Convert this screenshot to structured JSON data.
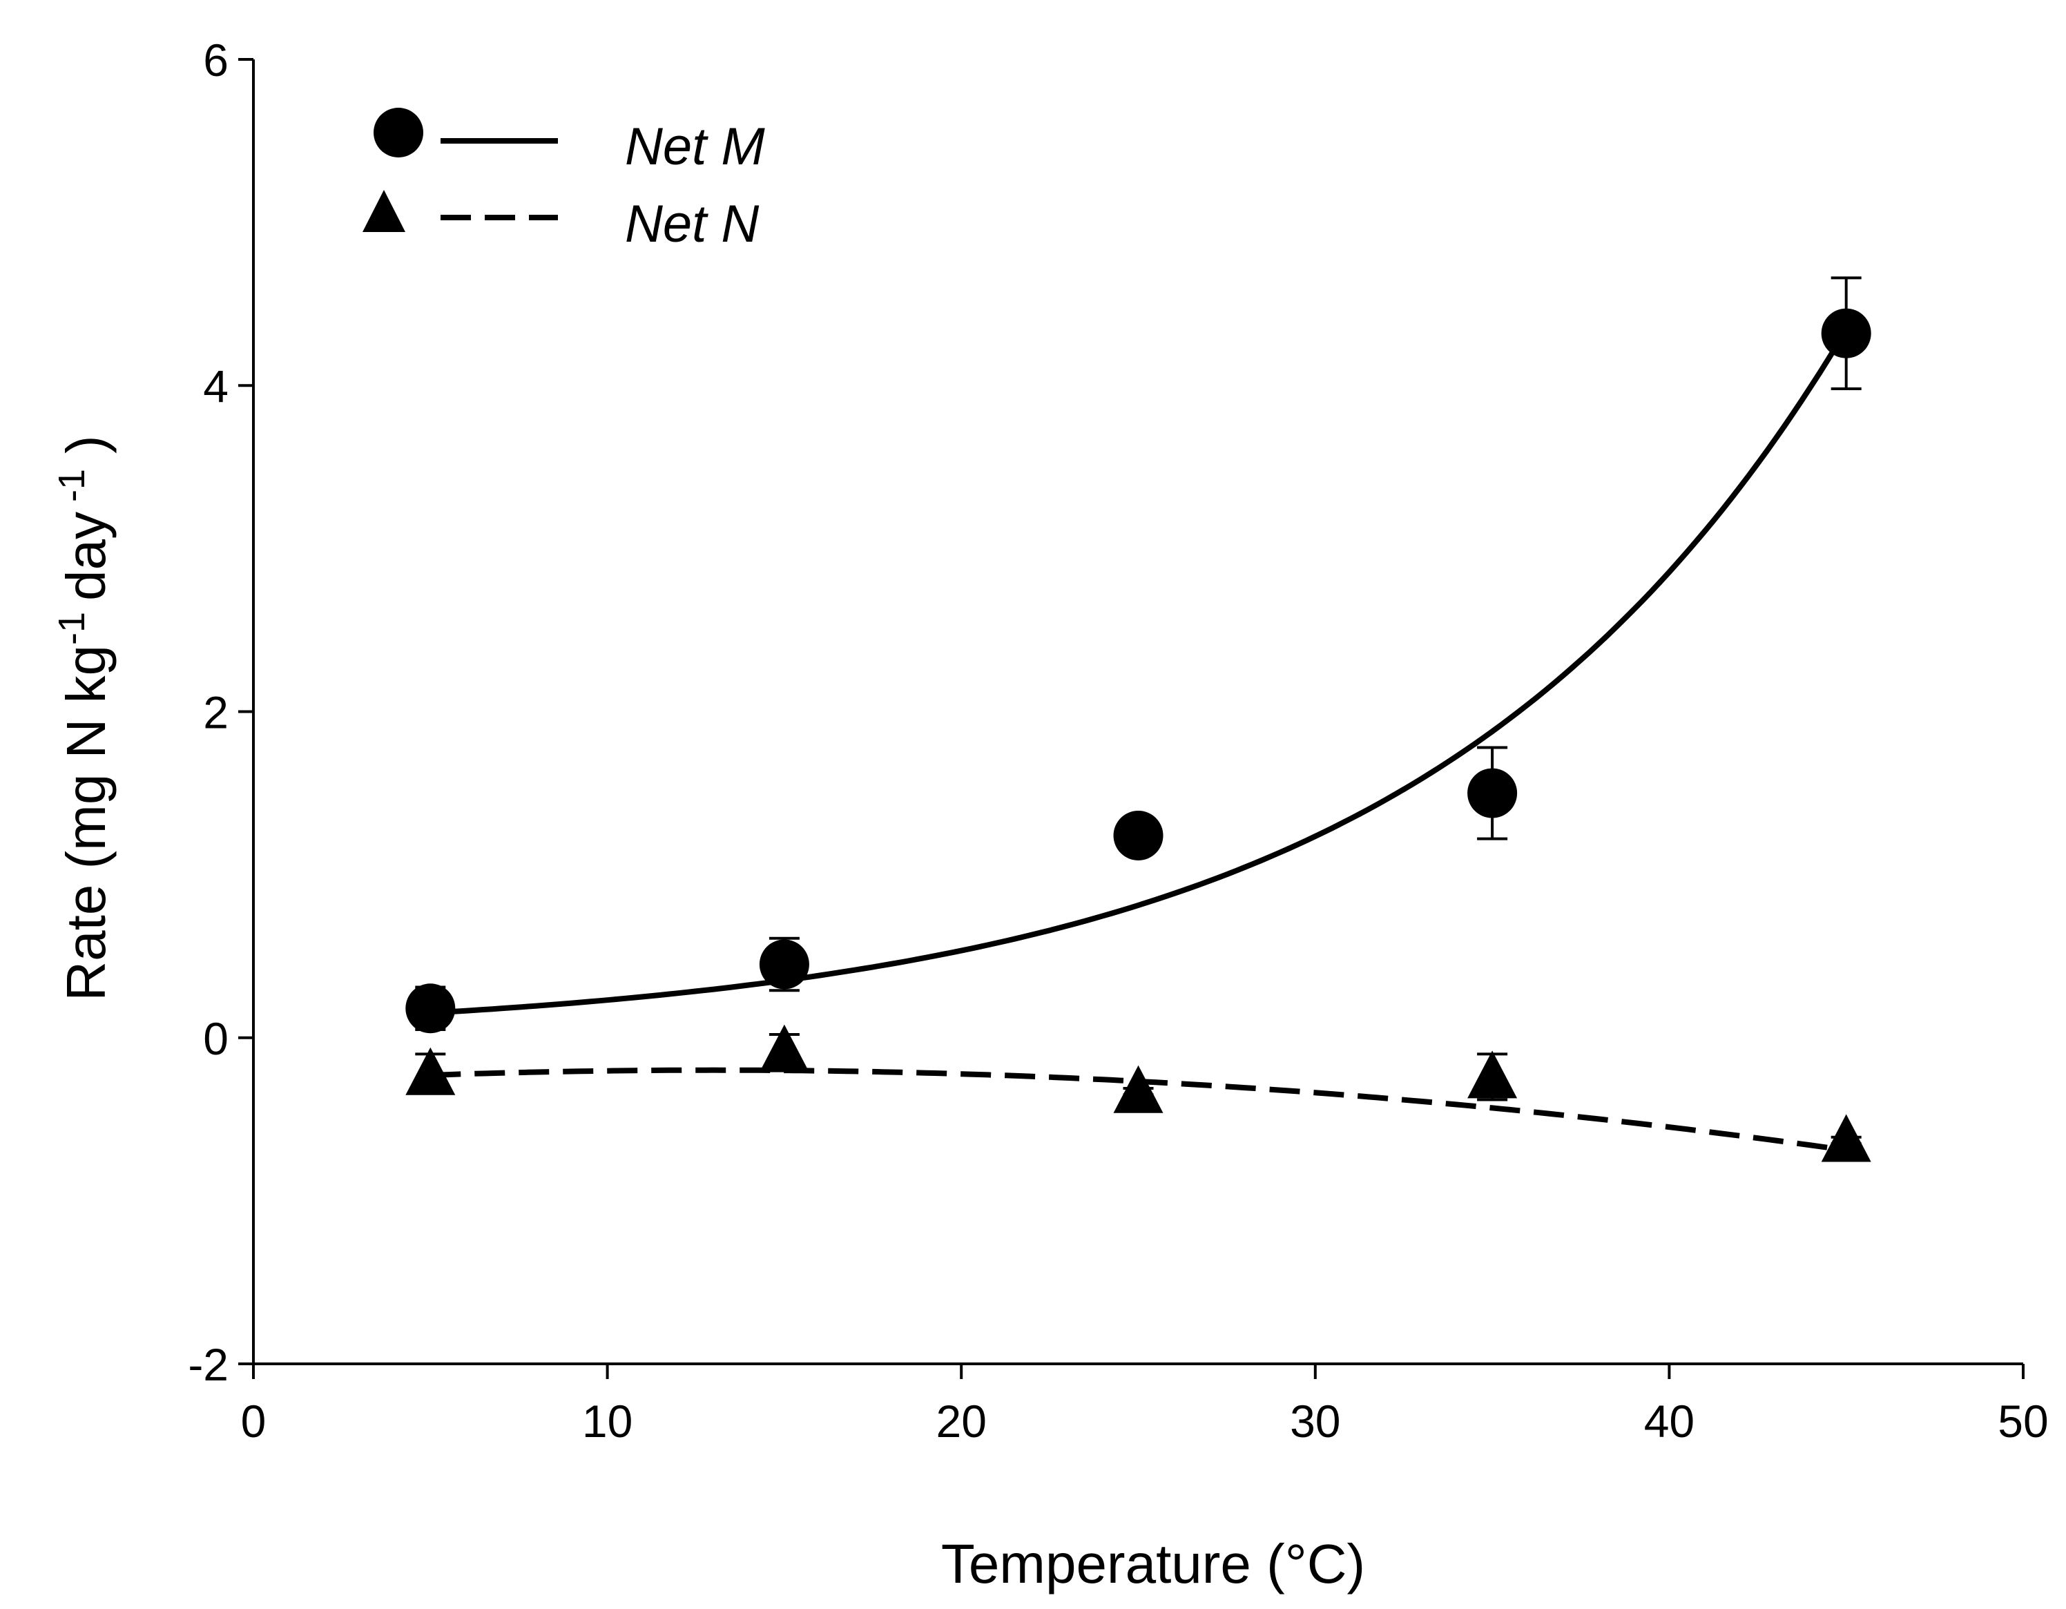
{
  "chart_data": {
    "type": "scatter",
    "title": "",
    "xlabel": "Temperature (°C)",
    "ylabel": "Rate (mg N kg",
    "ylabel_parts": {
      "p1": "Rate (mg N kg",
      "sup1": "-1",
      "p2": "day",
      "sup2": "-1",
      "p3": ")"
    },
    "xlim": [
      0,
      50
    ],
    "ylim": [
      -2,
      6
    ],
    "xticks": [
      0,
      10,
      20,
      30,
      40,
      50
    ],
    "yticks": [
      -2,
      0,
      2,
      4,
      6
    ],
    "xtick_labels": [
      "0",
      "10",
      "20",
      "30",
      "40",
      "50"
    ],
    "ytick_labels": [
      "-2",
      "0",
      "2",
      "4",
      "6"
    ],
    "legend_position": "top-left",
    "series": [
      {
        "name": "Net M",
        "marker": "circle",
        "line": "solid",
        "x": [
          5,
          15,
          25,
          35,
          45
        ],
        "y": [
          0.18,
          0.45,
          1.24,
          1.5,
          4.32
        ],
        "err": [
          0.13,
          0.16,
          0.02,
          0.28,
          0.34
        ],
        "fit": {
          "model": "exponential",
          "a": 0.1,
          "b": 0.0838
        }
      },
      {
        "name": "Net N",
        "marker": "triangle",
        "line": "dashed",
        "x": [
          5,
          15,
          25,
          35,
          45
        ],
        "y": [
          -0.22,
          -0.08,
          -0.33,
          -0.24,
          -0.63
        ],
        "err": [
          0.12,
          0.1,
          0.02,
          0.14,
          0.02
        ],
        "fit": {
          "model": "quadratic",
          "c": [
            -0.28,
            0.0125,
            -0.00048
          ]
        }
      }
    ]
  }
}
